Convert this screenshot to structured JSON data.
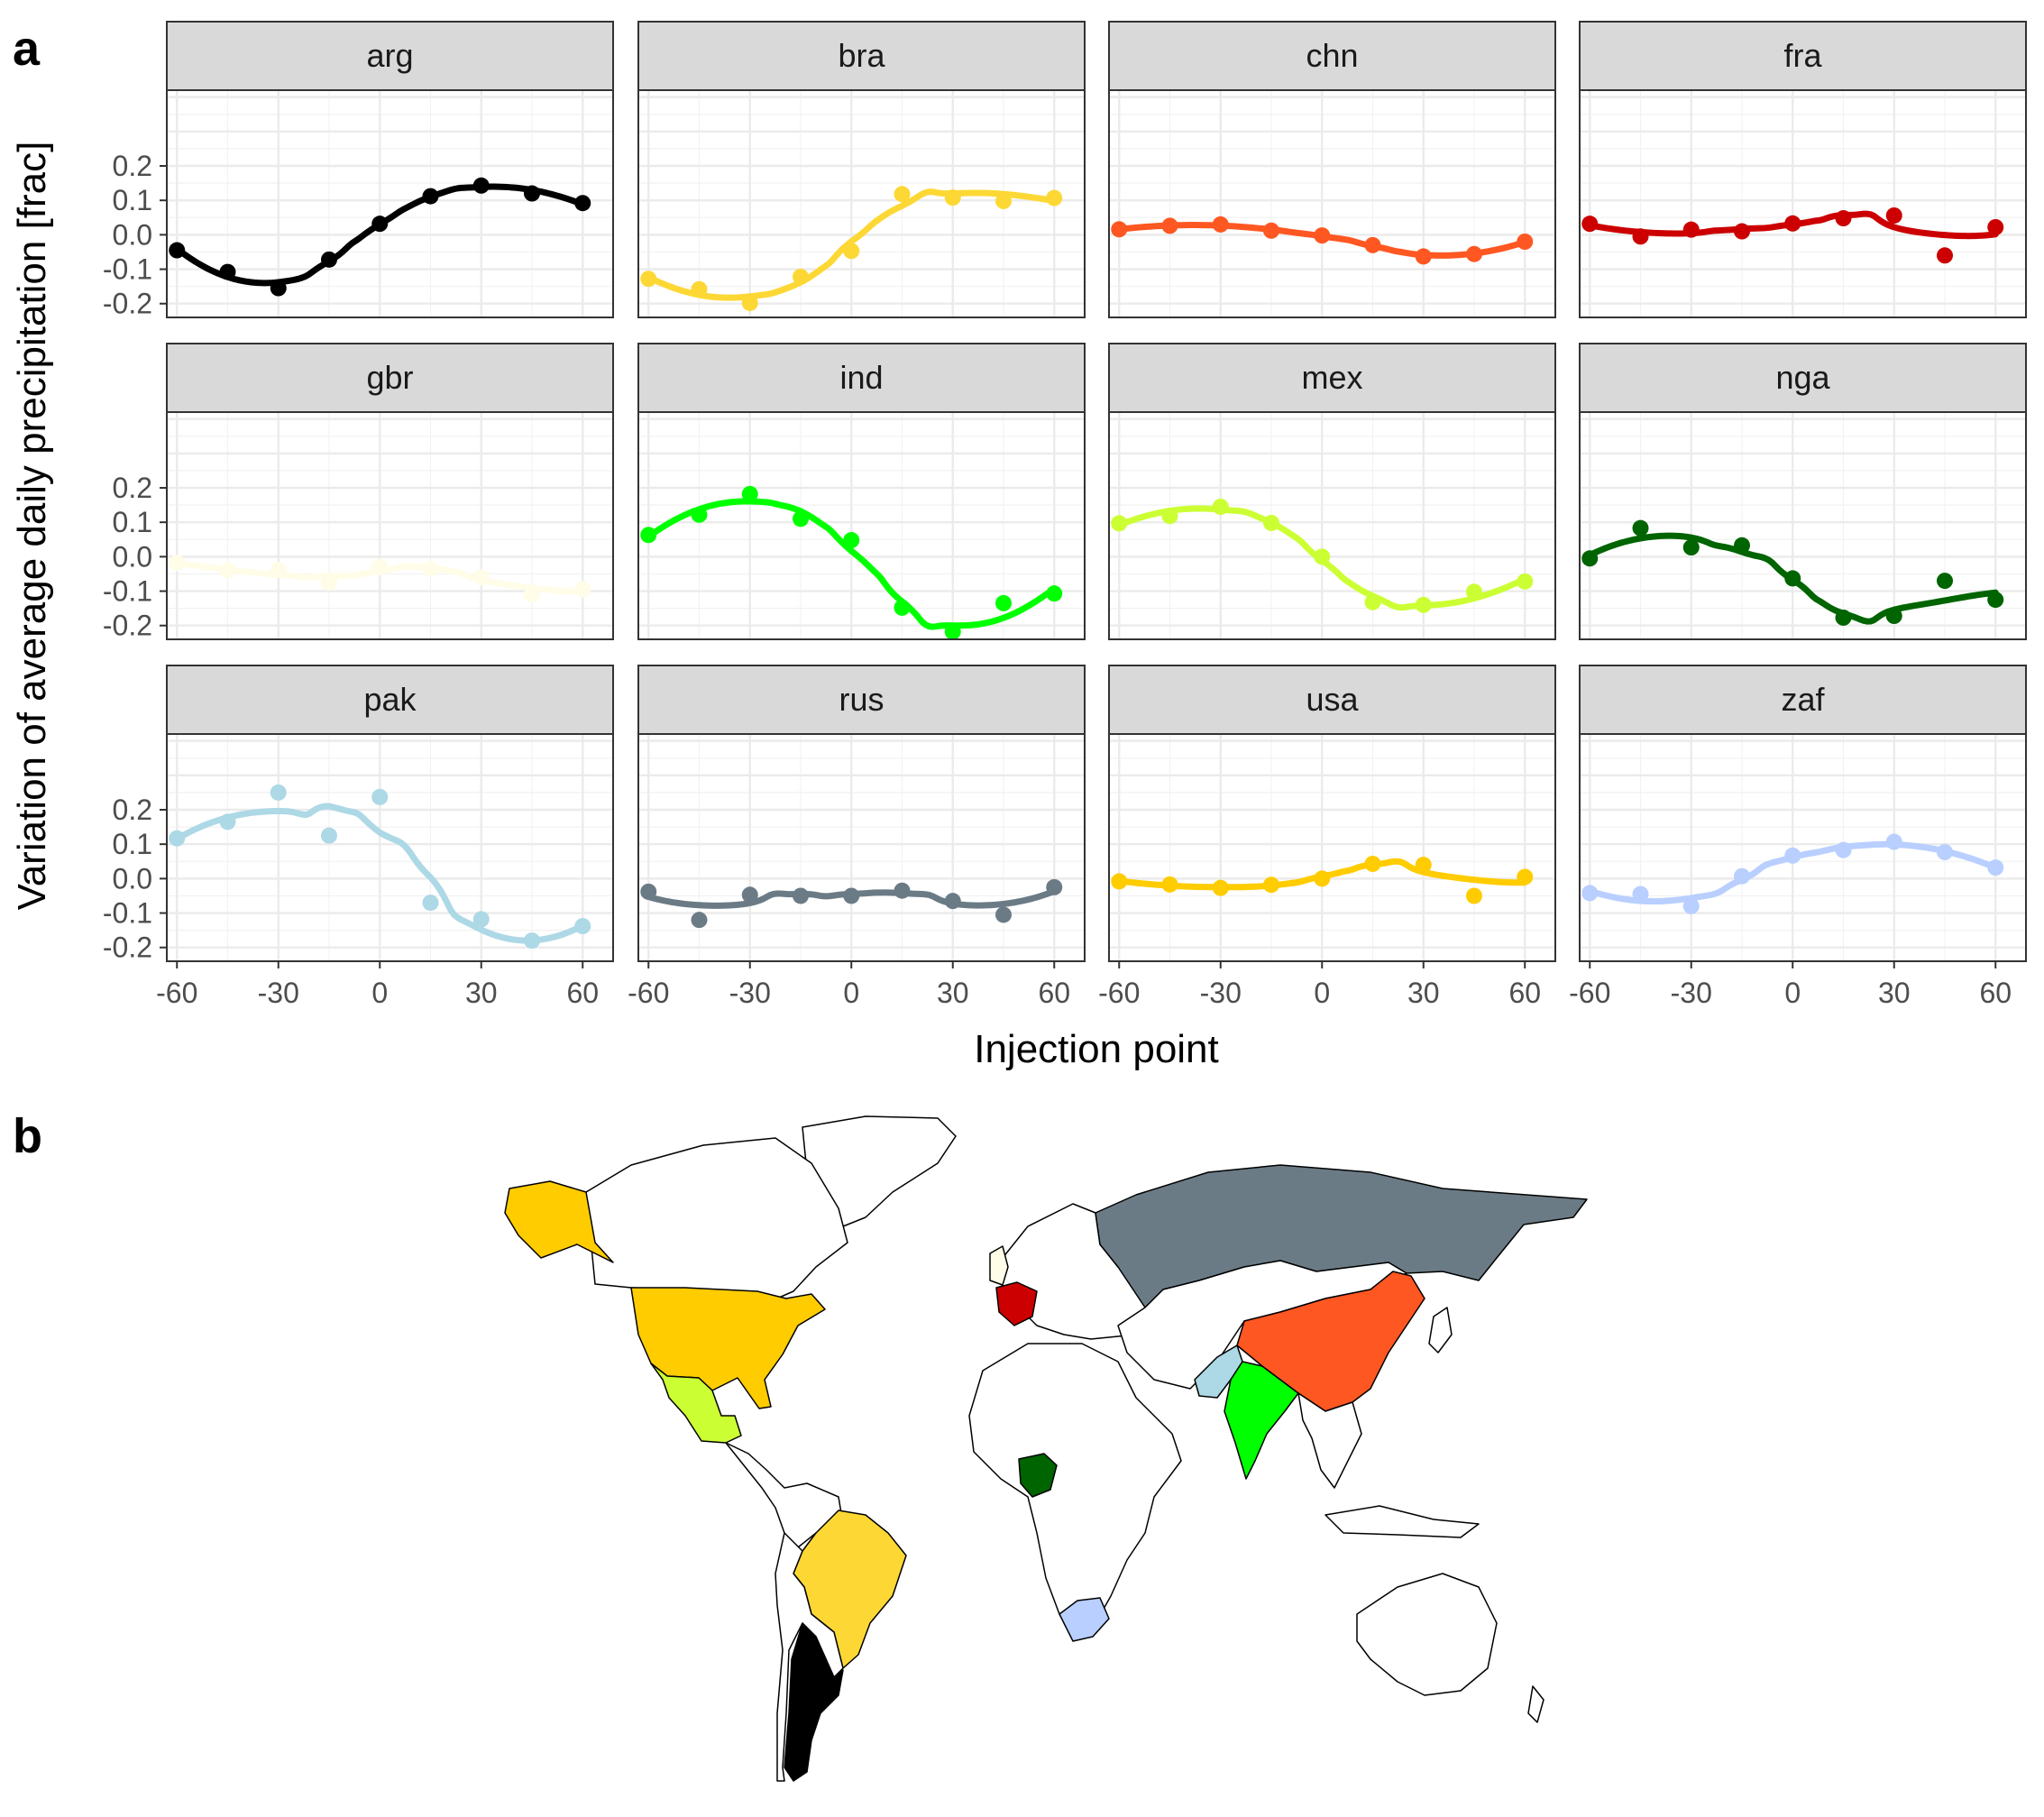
{
  "panel_a_label": "a",
  "panel_b_label": "b",
  "chart_data": {
    "type": "scatter",
    "facets": [
      "arg",
      "bra",
      "chn",
      "fra",
      "gbr",
      "ind",
      "mex",
      "nga",
      "pak",
      "rus",
      "usa",
      "zaf"
    ],
    "xlabel": "Injection point",
    "ylabel": "Variation of average daily precipitation [frac]",
    "x": [
      -60,
      -45,
      -30,
      -15,
      0,
      15,
      30,
      45,
      60
    ],
    "xticks": [
      -60,
      -30,
      0,
      30,
      60
    ],
    "xtick_labels": [
      "-60",
      "-30",
      "0",
      "30",
      "60"
    ],
    "yticks": [
      -0.2,
      -0.1,
      0.0,
      0.1,
      0.2
    ],
    "ytick_labels": [
      "-0.2",
      "-0.1",
      "0.0",
      "0.1",
      "0.2"
    ],
    "xlim": [
      -63,
      69
    ],
    "ylim": [
      -0.24,
      0.42
    ],
    "grid": true,
    "trend": "smoothed line",
    "series": [
      {
        "name": "arg",
        "color": "#000000",
        "values": [
          -0.045,
          -0.108,
          -0.155,
          -0.072,
          0.032,
          0.112,
          0.143,
          0.12,
          0.092
        ]
      },
      {
        "name": "bra",
        "color": "#FDD835",
        "values": [
          -0.128,
          -0.158,
          -0.198,
          -0.122,
          -0.047,
          0.118,
          0.108,
          0.098,
          0.107
        ]
      },
      {
        "name": "chn",
        "color": "#FF5722",
        "values": [
          0.016,
          0.026,
          0.03,
          0.012,
          -0.002,
          -0.03,
          -0.063,
          -0.056,
          -0.02
        ]
      },
      {
        "name": "fra",
        "color": "#CC0000",
        "values": [
          0.032,
          -0.005,
          0.015,
          0.01,
          0.033,
          0.048,
          0.056,
          -0.06,
          0.022
        ]
      },
      {
        "name": "gbr",
        "color": "#FFFDE7",
        "values": [
          -0.018,
          -0.04,
          -0.038,
          -0.075,
          -0.03,
          -0.035,
          -0.06,
          -0.11,
          -0.095
        ]
      },
      {
        "name": "ind",
        "color": "#00FF00",
        "values": [
          0.063,
          0.122,
          0.182,
          0.11,
          0.048,
          -0.148,
          -0.218,
          -0.135,
          -0.107
        ]
      },
      {
        "name": "mex",
        "color": "#CCFF33",
        "values": [
          0.097,
          0.118,
          0.145,
          0.098,
          0.0,
          -0.132,
          -0.14,
          -0.102,
          -0.072
        ]
      },
      {
        "name": "nga",
        "color": "#006400",
        "values": [
          -0.005,
          0.083,
          0.027,
          0.033,
          -0.063,
          -0.177,
          -0.172,
          -0.07,
          -0.125
        ]
      },
      {
        "name": "pak",
        "color": "#ADD8E6",
        "values": [
          0.117,
          0.165,
          0.25,
          0.125,
          0.237,
          -0.07,
          -0.118,
          -0.18,
          -0.138
        ]
      },
      {
        "name": "rus",
        "color": "#6B7B86",
        "values": [
          -0.038,
          -0.12,
          -0.047,
          -0.05,
          -0.05,
          -0.035,
          -0.065,
          -0.105,
          -0.025
        ]
      },
      {
        "name": "usa",
        "color": "#FFCC00",
        "values": [
          -0.008,
          -0.017,
          -0.027,
          -0.018,
          0.0,
          0.043,
          0.04,
          -0.05,
          0.005
        ]
      },
      {
        "name": "zaf",
        "color": "#B8CFFF",
        "values": [
          -0.042,
          -0.045,
          -0.08,
          0.007,
          0.067,
          0.083,
          0.107,
          0.077,
          0.032
        ]
      }
    ]
  },
  "map": {
    "highlighted_countries": [
      {
        "code": "arg",
        "color": "#000000"
      },
      {
        "code": "bra",
        "color": "#FDD835"
      },
      {
        "code": "chn",
        "color": "#FF5722"
      },
      {
        "code": "fra",
        "color": "#CC0000"
      },
      {
        "code": "gbr",
        "color": "#FFFDE7"
      },
      {
        "code": "ind",
        "color": "#00FF00"
      },
      {
        "code": "mex",
        "color": "#CCFF33"
      },
      {
        "code": "nga",
        "color": "#006400"
      },
      {
        "code": "pak",
        "color": "#ADD8E6"
      },
      {
        "code": "rus",
        "color": "#6B7B86"
      },
      {
        "code": "usa",
        "color": "#FFCC00"
      },
      {
        "code": "zaf",
        "color": "#B8CFFF"
      }
    ],
    "other_land_color": "#ffffff"
  }
}
